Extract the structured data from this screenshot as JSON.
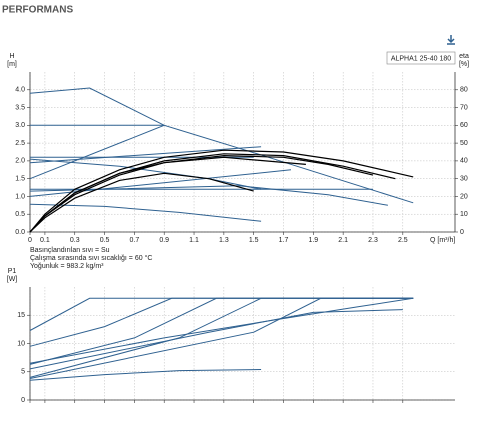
{
  "title": "PERFORMANS",
  "chart_data": [
    {
      "type": "line",
      "legend_label": "ALPHA1 25-40 180",
      "y_label": [
        "H",
        "[m]"
      ],
      "y2_label": [
        "eta",
        "[%]"
      ],
      "x_label": "Q [m³/h]",
      "xlim": [
        0,
        2.85
      ],
      "xticks": [
        0,
        0.1,
        0.3,
        0.5,
        0.7,
        0.9,
        1.1,
        1.3,
        1.5,
        1.7,
        1.9,
        2.1,
        2.3,
        2.5
      ],
      "ylim": [
        0,
        4.5
      ],
      "yticks": [
        {
          "value": 0,
          "label": "0.0"
        },
        {
          "value": 0.5,
          "label": "0.5"
        },
        {
          "value": 1,
          "label": "1.0"
        },
        {
          "value": 1.5,
          "label": "1.5"
        },
        {
          "value": 2,
          "label": "2.0"
        },
        {
          "value": 2.5,
          "label": "2.5"
        },
        {
          "value": 3,
          "label": "3.0"
        },
        {
          "value": 3.5,
          "label": "3.5"
        },
        {
          "value": 4,
          "label": "4.0"
        }
      ],
      "y2lim": [
        0,
        90
      ],
      "y2ticks": [
        0,
        10,
        20,
        30,
        40,
        50,
        60,
        70,
        80
      ],
      "grid": true,
      "series": [
        {
          "color": "#2f6190",
          "x": [
            0,
            0.4,
            0.9,
            1.6,
            2.57
          ],
          "values": [
            3.9,
            4.05,
            3.0,
            2.1,
            0.82
          ]
        },
        {
          "color": "#2f6190",
          "x": [
            0,
            0.9
          ],
          "values": [
            3.0,
            3.0
          ]
        },
        {
          "color": "#2f6190",
          "x": [
            0,
            1.5
          ],
          "values": [
            2.1,
            2.1
          ]
        },
        {
          "color": "#2f6190",
          "x": [
            0,
            2.3
          ],
          "values": [
            1.2,
            1.2
          ]
        },
        {
          "color": "#2f6190",
          "x": [
            0,
            0.9
          ],
          "values": [
            1.5,
            3.0
          ]
        },
        {
          "color": "#2f6190",
          "x": [
            0,
            1.55
          ],
          "values": [
            1.95,
            2.4
          ]
        },
        {
          "color": "#2f6190",
          "x": [
            0,
            1.75
          ],
          "values": [
            1.0,
            1.75
          ]
        },
        {
          "color": "#2f6190",
          "x": [
            0,
            0.6,
            1.2,
            1.55
          ],
          "values": [
            2.05,
            1.85,
            1.5,
            1.2
          ]
        },
        {
          "color": "#2f6190",
          "x": [
            0,
            1.4,
            2.0,
            2.4
          ],
          "values": [
            1.15,
            1.3,
            1.05,
            0.75
          ]
        },
        {
          "color": "#2f6190",
          "x": [
            0,
            0.5,
            1.0,
            1.55
          ],
          "values": [
            0.78,
            0.72,
            0.55,
            0.3
          ]
        },
        {
          "color": "#000000",
          "axis": "y2",
          "x": [
            0,
            0.1,
            0.3,
            0.6,
            0.9,
            1.3,
            1.7,
            2.1,
            2.57
          ],
          "values": [
            0,
            10,
            24,
            35,
            42,
            46,
            45,
            40,
            31
          ]
        },
        {
          "color": "#000000",
          "axis": "y2",
          "x": [
            0,
            0.1,
            0.3,
            0.6,
            0.9,
            1.3,
            1.7,
            2.1,
            2.45
          ],
          "values": [
            0,
            9,
            22,
            33,
            40,
            44,
            43,
            37,
            30
          ]
        },
        {
          "color": "#000000",
          "axis": "y2",
          "x": [
            0,
            0.1,
            0.3,
            0.6,
            0.9,
            1.3,
            1.7,
            2.0,
            2.3
          ],
          "values": [
            0,
            9,
            21,
            32,
            39,
            43,
            42,
            38,
            32
          ]
        },
        {
          "color": "#000000",
          "axis": "y2",
          "x": [
            0,
            0.1,
            0.3,
            0.6,
            0.9,
            1.2,
            1.5
          ],
          "values": [
            0,
            8,
            19,
            29,
            33,
            30,
            23
          ]
        },
        {
          "color": "#000000",
          "axis": "y2",
          "x": [
            0,
            0.1,
            0.3,
            0.6,
            0.9,
            1.3,
            1.85
          ],
          "values": [
            0,
            9,
            22,
            33,
            39,
            42,
            38
          ]
        }
      ]
    },
    {
      "type": "line",
      "y_label": [
        "P1",
        "[W]"
      ],
      "xlim": [
        0,
        2.85
      ],
      "xticks": [
        0,
        0.1,
        0.3,
        0.5,
        0.7,
        0.9,
        1.1,
        1.3,
        1.5,
        1.7,
        1.9,
        2.1,
        2.3,
        2.5
      ],
      "ylim": [
        0,
        20
      ],
      "yticks": [
        0,
        5,
        10,
        15
      ],
      "grid": true,
      "series": [
        {
          "color": "#2f6190",
          "x": [
            0,
            0.4,
            2.57
          ],
          "values": [
            12.3,
            18,
            18
          ]
        },
        {
          "color": "#2f6190",
          "x": [
            0,
            0.5,
            0.95,
            2.57
          ],
          "values": [
            9.5,
            13,
            18,
            18
          ]
        },
        {
          "color": "#2f6190",
          "x": [
            0,
            0.7,
            1.25,
            2.57
          ],
          "values": [
            6.3,
            11,
            18,
            18
          ]
        },
        {
          "color": "#2f6190",
          "x": [
            0,
            1.0,
            1.55,
            2.57
          ],
          "values": [
            4.0,
            11,
            18,
            18
          ]
        },
        {
          "color": "#2f6190",
          "x": [
            0,
            1.5,
            1.95,
            2.57
          ],
          "values": [
            3.8,
            12,
            18,
            18
          ]
        },
        {
          "color": "#2f6190",
          "x": [
            0,
            1.2,
            1.9,
            2.5
          ],
          "values": [
            5.5,
            12,
            15.5,
            16
          ]
        },
        {
          "color": "#2f6190",
          "x": [
            0,
            0.9,
            1.6,
            2.2,
            2.57
          ],
          "values": [
            6.5,
            11,
            14,
            16.5,
            18
          ]
        },
        {
          "color": "#2f6190",
          "x": [
            0,
            0.5,
            1.0,
            1.55
          ],
          "values": [
            3.5,
            4.5,
            5.2,
            5.4
          ]
        }
      ]
    }
  ],
  "notes": [
    "Basınçlandırılan sıvı = Su",
    "Çalışma sırasında sıvı sıcaklığı = 60 °C",
    "Yoğunluk = 983.2 kg/m³"
  ]
}
